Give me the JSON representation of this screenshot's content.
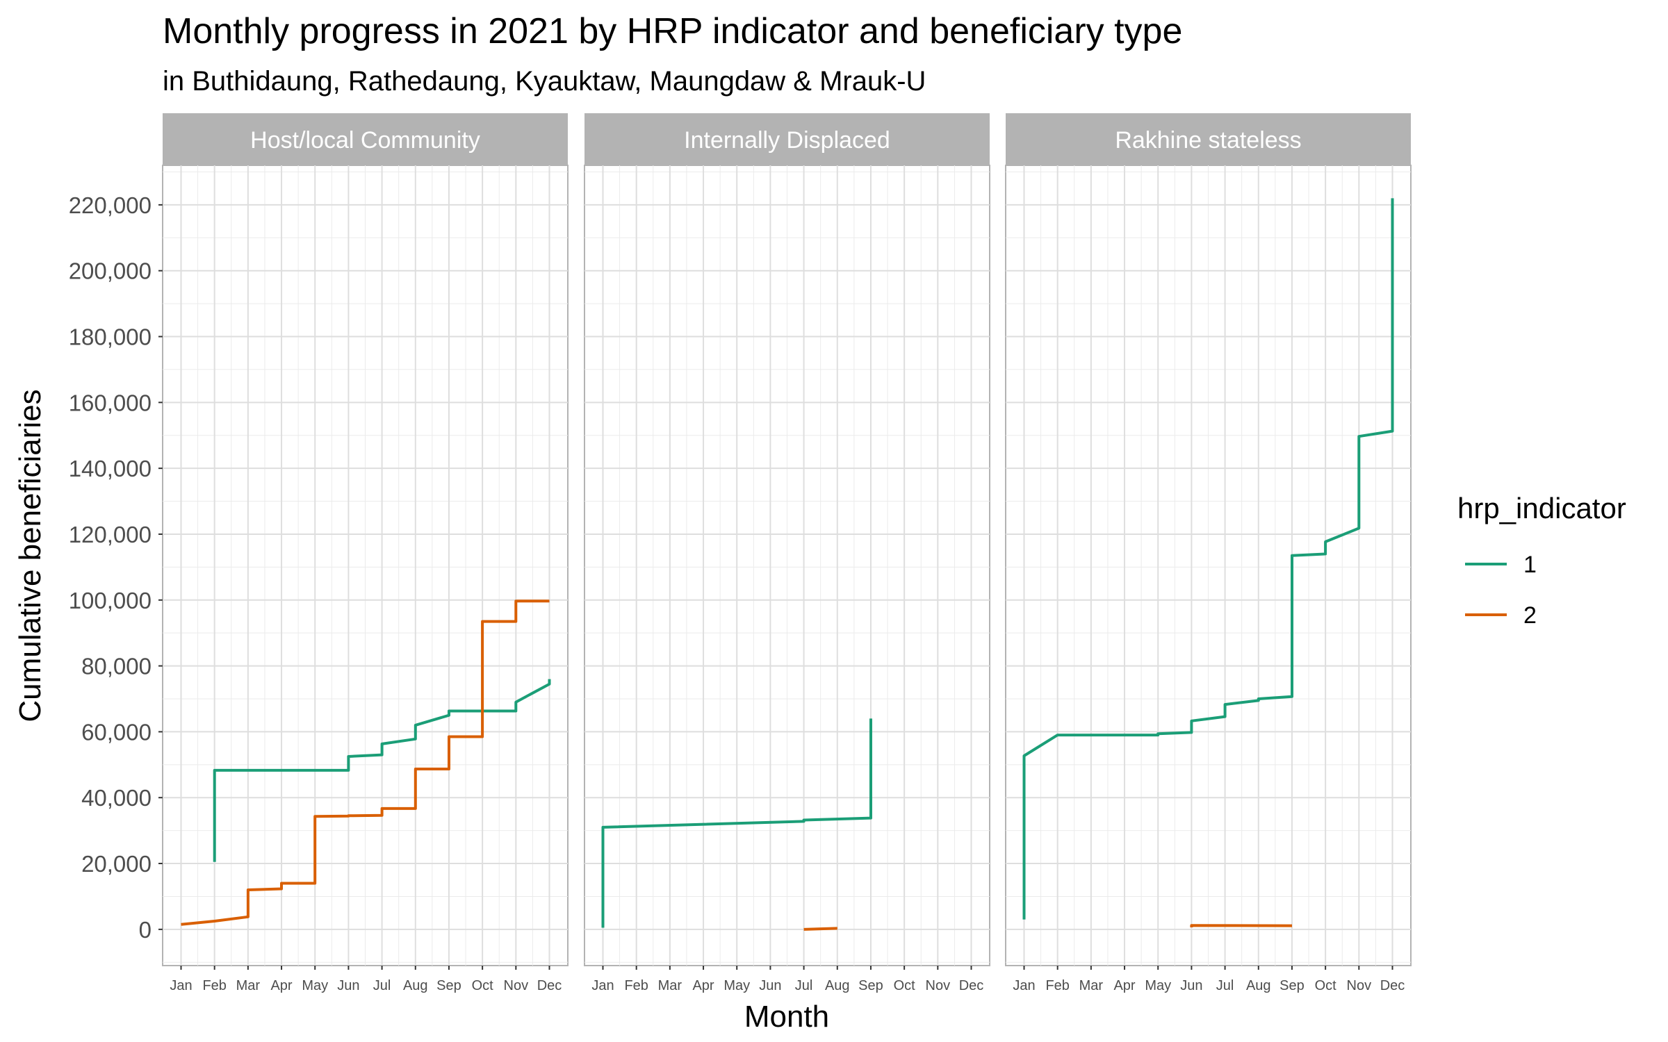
{
  "chart_data": {
    "type": "line",
    "title": "Monthly progress in 2021 by HRP indicator and beneficiary type",
    "subtitle": "in Buthidaung, Rathedaung, Kyauktaw, Maungdaw & Mrauk-U",
    "xlabel": "Month",
    "ylabel": "Cumulative beneficiaries",
    "months": [
      "Jan",
      "Feb",
      "Mar",
      "Apr",
      "May",
      "Jun",
      "Jul",
      "Aug",
      "Sep",
      "Oct",
      "Nov",
      "Dec"
    ],
    "yticks": [
      "0",
      "20,000",
      "40,000",
      "60,000",
      "80,000",
      "100,000",
      "120,000",
      "140,000",
      "160,000",
      "180,000",
      "200,000",
      "220,000"
    ],
    "ylim": [
      -11000,
      232000
    ],
    "grid": true,
    "legend": {
      "title": "hrp_indicator",
      "position": "right",
      "entries": [
        {
          "label": "1",
          "color": "#1B9E77"
        },
        {
          "label": "2",
          "color": "#D95F02"
        }
      ]
    },
    "panels": [
      {
        "name": "Host/local Community",
        "series": [
          {
            "name": "1",
            "points": [
              [
                2,
                20500
              ],
              [
                2,
                48300
              ],
              [
                6,
                48300
              ],
              [
                6,
                52500
              ],
              [
                7,
                53000
              ],
              [
                7,
                56300
              ],
              [
                8,
                57800
              ],
              [
                8,
                62000
              ],
              [
                9,
                65000
              ],
              [
                9,
                66300
              ],
              [
                11,
                66300
              ],
              [
                11,
                69000
              ],
              [
                12,
                74500
              ],
              [
                12,
                76000
              ]
            ]
          },
          {
            "name": "2",
            "points": [
              [
                1,
                1500
              ],
              [
                2,
                2500
              ],
              [
                3,
                3800
              ],
              [
                3,
                12000
              ],
              [
                4,
                12300
              ],
              [
                4,
                14000
              ],
              [
                5,
                14000
              ],
              [
                5,
                34300
              ],
              [
                6,
                34400
              ],
              [
                6,
                34500
              ],
              [
                7,
                34600
              ],
              [
                7,
                36700
              ],
              [
                8,
                36700
              ],
              [
                8,
                48700
              ],
              [
                9,
                48700
              ],
              [
                9,
                58500
              ],
              [
                10,
                58500
              ],
              [
                10,
                93500
              ],
              [
                11,
                93500
              ],
              [
                11,
                99700
              ],
              [
                12,
                99700
              ]
            ]
          }
        ]
      },
      {
        "name": "Internally Displaced",
        "series": [
          {
            "name": "1",
            "points": [
              [
                1,
                500
              ],
              [
                1,
                31000
              ],
              [
                7,
                32800
              ],
              [
                7,
                33200
              ],
              [
                9,
                33800
              ],
              [
                9,
                64000
              ]
            ]
          },
          {
            "name": "2",
            "points": [
              [
                7,
                0
              ],
              [
                8,
                300
              ]
            ]
          }
        ]
      },
      {
        "name": "Rakhine stateless",
        "series": [
          {
            "name": "1",
            "points": [
              [
                1,
                3000
              ],
              [
                1,
                52700
              ],
              [
                2,
                59000
              ],
              [
                5,
                59000
              ],
              [
                5,
                59400
              ],
              [
                6,
                59800
              ],
              [
                6,
                63300
              ],
              [
                7,
                64600
              ],
              [
                7,
                68300
              ],
              [
                8,
                69500
              ],
              [
                8,
                70000
              ],
              [
                9,
                70700
              ],
              [
                9,
                113500
              ],
              [
                10,
                114000
              ],
              [
                10,
                117700
              ],
              [
                11,
                121800
              ],
              [
                11,
                149700
              ],
              [
                12,
                151300
              ],
              [
                12,
                222000
              ]
            ]
          },
          {
            "name": "2",
            "points": [
              [
                6,
                600
              ],
              [
                6,
                1200
              ],
              [
                9,
                1100
              ]
            ]
          }
        ]
      }
    ]
  }
}
